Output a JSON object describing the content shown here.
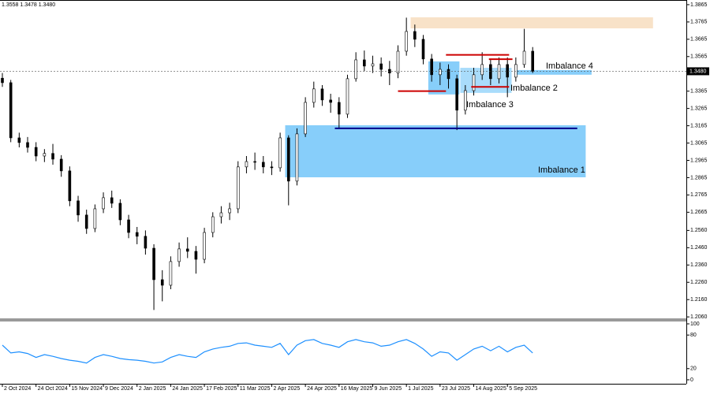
{
  "chart_data": {
    "type": "candlestick",
    "header": "1.3558 1.3478 1.3480",
    "categories": [
      "2 Oct 2024",
      null,
      null,
      null,
      "24 Oct 2024",
      null,
      null,
      null,
      "15 Nov 2024",
      null,
      null,
      null,
      "9 Dec 2024",
      null,
      null,
      null,
      "2 Jan 2025",
      null,
      null,
      null,
      "24 Jan 2025",
      null,
      null,
      null,
      "17 Feb 2025",
      null,
      null,
      null,
      "11 Mar 2025",
      null,
      null,
      null,
      "2 Apr 2025",
      null,
      null,
      null,
      "24 Apr 2025",
      null,
      null,
      null,
      "16 May 2025",
      null,
      null,
      null,
      "9 Jun 2025",
      null,
      null,
      null,
      "1 Jul 2025",
      null,
      null,
      null,
      "23 Jul 2025",
      null,
      null,
      null,
      "14 Aug 2025",
      null,
      null,
      null,
      "5 Sep 2025",
      null,
      null,
      null
    ],
    "open": [
      1.344,
      1.3414,
      1.3095,
      1.3068,
      1.304,
      1.299,
      1.3005,
      1.2972,
      1.2904,
      1.2731,
      1.2649,
      1.2571,
      1.2685,
      1.2749,
      1.2717,
      1.2621,
      1.2548,
      1.2526,
      1.2457,
      1.2275,
      1.2243,
      1.238,
      1.2453,
      1.2439,
      1.2393,
      1.2548,
      1.2639,
      1.2662,
      1.2685,
      1.2927,
      1.2958,
      1.2954,
      1.2927,
      1.2922,
      1.3095,
      1.2845,
      1.3118,
      1.33,
      1.3378,
      1.3314,
      1.33,
      1.3232,
      1.3437,
      1.3546,
      1.351,
      1.3523,
      1.3491,
      1.347,
      1.3596,
      1.371,
      1.3665,
      1.3551,
      1.346,
      1.3491,
      1.3437,
      1.3255,
      1.3368,
      1.346,
      1.3519,
      1.3437,
      1.3519,
      1.3446,
      1.3519,
      1.3596
    ],
    "high": [
      1.347,
      1.343,
      1.3125,
      1.31,
      1.307,
      1.303,
      1.306,
      1.2995,
      1.293,
      1.276,
      1.268,
      1.271,
      1.278,
      1.279,
      1.274,
      1.265,
      1.258,
      1.256,
      1.248,
      1.233,
      1.241,
      1.249,
      1.252,
      1.247,
      1.2575,
      1.2665,
      1.27,
      1.272,
      1.296,
      1.299,
      1.301,
      1.299,
      1.296,
      1.3125,
      1.311,
      1.315,
      1.333,
      1.342,
      1.34,
      1.335,
      1.333,
      1.346,
      1.359,
      1.36,
      1.357,
      1.356,
      1.354,
      1.363,
      1.379,
      1.375,
      1.369,
      1.358,
      1.353,
      1.352,
      1.346,
      1.34,
      1.35,
      1.359,
      1.355,
      1.356,
      1.356,
      1.356,
      1.3725,
      1.362
    ],
    "low": [
      1.339,
      1.307,
      1.304,
      1.301,
      1.296,
      1.2955,
      1.294,
      1.287,
      1.27,
      1.261,
      1.254,
      1.255,
      1.266,
      1.269,
      1.259,
      1.2515,
      1.248,
      1.242,
      1.21,
      1.215,
      1.222,
      1.235,
      1.24,
      1.231,
      1.237,
      1.252,
      1.26,
      1.262,
      1.266,
      1.289,
      1.291,
      1.289,
      1.288,
      1.29,
      1.2705,
      1.282,
      1.31,
      1.327,
      1.328,
      1.324,
      1.315,
      1.321,
      1.342,
      1.348,
      1.347,
      1.345,
      1.34,
      1.344,
      1.357,
      1.362,
      1.352,
      1.342,
      1.34,
      1.338,
      1.314,
      1.323,
      1.334,
      1.343,
      1.34,
      1.341,
      1.333,
      1.342,
      1.35,
      1.347
    ],
    "close": [
      1.3414,
      1.3095,
      1.3068,
      1.304,
      1.299,
      1.3005,
      1.2972,
      1.2904,
      1.2731,
      1.2649,
      1.2571,
      1.2685,
      1.2749,
      1.2717,
      1.2621,
      1.2548,
      1.2526,
      1.2457,
      1.2275,
      1.2243,
      1.238,
      1.2453,
      1.2439,
      1.2393,
      1.2548,
      1.2639,
      1.2662,
      1.2685,
      1.2927,
      1.2958,
      1.2954,
      1.2927,
      1.2922,
      1.3095,
      1.2845,
      1.3118,
      1.33,
      1.3378,
      1.3314,
      1.33,
      1.3232,
      1.3437,
      1.3546,
      1.351,
      1.3523,
      1.3491,
      1.347,
      1.3596,
      1.371,
      1.3665,
      1.3551,
      1.346,
      1.3491,
      1.3437,
      1.3255,
      1.3368,
      1.346,
      1.3519,
      1.3437,
      1.3519,
      1.3446,
      1.3519,
      1.3596,
      1.348
    ],
    "up_color": "#ffffff",
    "down_color": "#000000",
    "ylim": [
      1.2047,
      1.3892
    ],
    "yticks": [
      1.3865,
      1.3765,
      1.3665,
      1.3565,
      1.3365,
      1.3265,
      1.3165,
      1.3065,
      1.2965,
      1.2865,
      1.2765,
      1.2665,
      {
        "value": 1.256,
        "label": "1.2560"
      },
      {
        "value": 1.246,
        "label": "1.2460"
      },
      {
        "value": 1.236,
        "label": "1.2360"
      },
      {
        "value": 1.226,
        "label": "1.2260"
      },
      {
        "value": 1.216,
        "label": "1.2160"
      },
      {
        "value": 1.206,
        "label": "1.2060"
      }
    ],
    "current_price": {
      "value": 1.348,
      "label": "1.3480"
    },
    "zones": [
      {
        "color": "#f8e2c8",
        "x": [
          48.5,
          77.3
        ],
        "range": [
          1.3728,
          1.3792
        ]
      },
      {
        "name": "Imbalance 1",
        "color": "#87cefa",
        "x": [
          33.6,
          69.3
        ],
        "range": [
          1.2867,
          1.3168
        ]
      },
      {
        "name": "Imbalance 2",
        "color": "#a9dcfb",
        "x": [
          54.4,
          60.5
        ],
        "range": [
          1.3355,
          1.35
        ]
      },
      {
        "name": "Imbalance 3",
        "color": "#87cefa",
        "x": [
          50.6,
          54.3
        ],
        "range": [
          1.3346,
          1.3537
        ]
      },
      {
        "name": "Imbalance 4",
        "color": "#87cefa",
        "x": [
          60.9,
          70.0
        ],
        "range": [
          1.346,
          1.3487
        ]
      }
    ],
    "levels": [
      {
        "color": "#cc0000",
        "x": [
          47.0,
          52.7
        ],
        "value": 1.3365
      },
      {
        "color": "#cc0000",
        "x": [
          52.7,
          60.2
        ],
        "value": 1.3575
      },
      {
        "color": "#cc0000",
        "x": [
          57.8,
          60.6
        ],
        "value": 1.355
      },
      {
        "color": "#cc0000",
        "x": [
          55.7,
          60.2
        ],
        "value": 1.339
      },
      {
        "color": "#00008b",
        "x": [
          39.5,
          68.3
        ],
        "value": 1.315
      }
    ],
    "indicator": {
      "type": "line",
      "color": "#1e90ff",
      "values": [
        62,
        48,
        50,
        47,
        40,
        45,
        42,
        38,
        35,
        33,
        30,
        40,
        45,
        42,
        38,
        36,
        35,
        33,
        30,
        32,
        40,
        45,
        42,
        40,
        50,
        55,
        58,
        60,
        65,
        66,
        62,
        60,
        58,
        65,
        45,
        62,
        70,
        72,
        65,
        62,
        58,
        68,
        72,
        68,
        66,
        60,
        62,
        68,
        72,
        65,
        55,
        42,
        50,
        48,
        35,
        45,
        55,
        60,
        52,
        60,
        50,
        58,
        62,
        48
      ],
      "ylim": [
        -11.3,
        104.2
      ],
      "yticks": [
        0,
        20,
        80,
        100
      ]
    }
  }
}
